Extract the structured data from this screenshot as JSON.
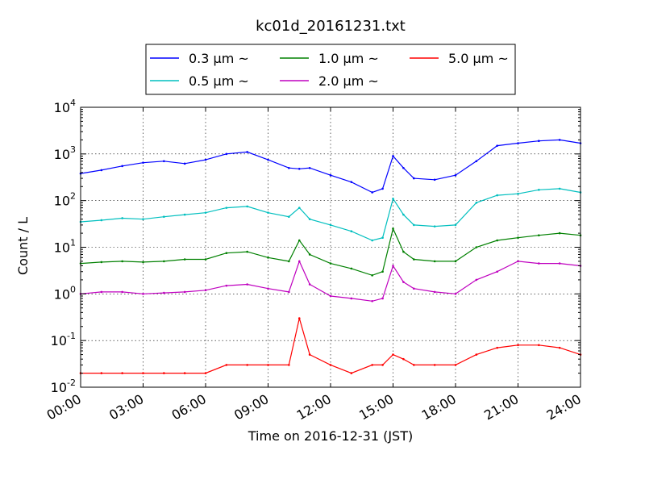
{
  "chart_data": {
    "type": "line",
    "title": "kc01d_20161231.txt",
    "xlabel": "Time on 2016-12-31 (JST)",
    "ylabel": "Count / L",
    "xlim": [
      "00:00",
      "24:00"
    ],
    "ylim": [
      0.01,
      10000
    ],
    "yscale": "log",
    "grid": true,
    "legend_position": "top-center",
    "x_ticks": [
      "00:00",
      "03:00",
      "06:00",
      "09:00",
      "12:00",
      "15:00",
      "18:00",
      "21:00",
      "24:00"
    ],
    "y_ticks": [
      {
        "base": "10",
        "exp": "-2",
        "value": 0.01
      },
      {
        "base": "10",
        "exp": "-1",
        "value": 0.1
      },
      {
        "base": "10",
        "exp": "0",
        "value": 1
      },
      {
        "base": "10",
        "exp": "1",
        "value": 10
      },
      {
        "base": "10",
        "exp": "2",
        "value": 100
      },
      {
        "base": "10",
        "exp": "3",
        "value": 1000
      },
      {
        "base": "10",
        "exp": "4",
        "value": 10000
      }
    ],
    "x": [
      "00:00",
      "01:00",
      "02:00",
      "03:00",
      "04:00",
      "05:00",
      "06:00",
      "07:00",
      "08:00",
      "09:00",
      "10:00",
      "10:30",
      "11:00",
      "12:00",
      "13:00",
      "14:00",
      "14:30",
      "15:00",
      "15:30",
      "16:00",
      "17:00",
      "18:00",
      "19:00",
      "20:00",
      "21:00",
      "22:00",
      "23:00",
      "24:00"
    ],
    "series": [
      {
        "name": "0.3 µm ~",
        "color": "#0000ff",
        "values": [
          380,
          450,
          550,
          650,
          700,
          620,
          750,
          1000,
          1100,
          750,
          500,
          480,
          500,
          350,
          250,
          150,
          180,
          900,
          500,
          300,
          280,
          350,
          700,
          1500,
          1700,
          1900,
          2000,
          1700
        ]
      },
      {
        "name": "0.5 µm ~",
        "color": "#00bfbf",
        "values": [
          35,
          38,
          42,
          40,
          45,
          50,
          55,
          70,
          75,
          55,
          45,
          70,
          40,
          30,
          22,
          14,
          16,
          110,
          50,
          30,
          28,
          30,
          90,
          130,
          140,
          170,
          180,
          150
        ]
      },
      {
        "name": "1.0 µm ~",
        "color": "#008000",
        "values": [
          4.5,
          4.8,
          5.0,
          4.8,
          5.0,
          5.5,
          5.5,
          7.5,
          8.0,
          6.0,
          5.0,
          14,
          7.0,
          4.5,
          3.5,
          2.5,
          3.0,
          25,
          8,
          5.5,
          5.0,
          5.0,
          10,
          14,
          16,
          18,
          20,
          18
        ]
      },
      {
        "name": "2.0 µm ~",
        "color": "#bf00bf",
        "values": [
          1.0,
          1.1,
          1.1,
          1.0,
          1.05,
          1.1,
          1.2,
          1.5,
          1.6,
          1.3,
          1.1,
          5.0,
          1.6,
          0.9,
          0.8,
          0.7,
          0.8,
          4.0,
          1.8,
          1.3,
          1.1,
          1.0,
          2.0,
          3.0,
          5.0,
          4.5,
          4.5,
          4.0
        ]
      },
      {
        "name": "5.0 µm ~",
        "color": "#ff0000",
        "values": [
          0.02,
          0.02,
          0.02,
          0.02,
          0.02,
          0.02,
          0.02,
          0.03,
          0.03,
          0.03,
          0.03,
          0.3,
          0.05,
          0.03,
          0.02,
          0.03,
          0.03,
          0.05,
          0.04,
          0.03,
          0.03,
          0.03,
          0.05,
          0.07,
          0.08,
          0.08,
          0.07,
          0.05
        ]
      }
    ]
  },
  "legend": {
    "items": [
      {
        "label": "0.3 µm ~",
        "color": "#0000ff"
      },
      {
        "label": "1.0 µm ~",
        "color": "#008000"
      },
      {
        "label": "5.0 µm ~",
        "color": "#ff0000"
      },
      {
        "label": "0.5 µm ~",
        "color": "#00bfbf"
      },
      {
        "label": "2.0 µm ~",
        "color": "#bf00bf"
      }
    ]
  }
}
